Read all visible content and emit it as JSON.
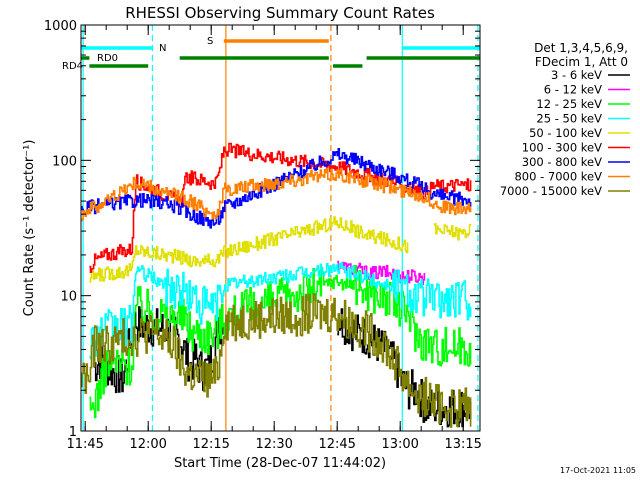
{
  "chart_data": {
    "type": "line",
    "title": "RHESSI Observing Summary Count Rates",
    "xlabel": "Start Time (28-Dec-07 11:44:02)",
    "ylabel": "Count Rate (s⁻¹ detector⁻¹)",
    "yscale": "log",
    "xlim_minutes": [
      0,
      95
    ],
    "ylim": [
      1,
      1000
    ],
    "x_ticks": [
      {
        "label": "11:45",
        "min": 1
      },
      {
        "label": "12:00",
        "min": 16
      },
      {
        "label": "12:15",
        "min": 31
      },
      {
        "label": "12:30",
        "min": 46
      },
      {
        "label": "12:45",
        "min": 61
      },
      {
        "label": "13:00",
        "min": 76
      },
      {
        "label": "13:15",
        "min": 91
      }
    ],
    "y_ticks": [
      {
        "label": "1",
        "value": 1
      },
      {
        "label": "10",
        "value": 10
      },
      {
        "label": "100",
        "value": 100
      },
      {
        "label": "1000",
        "value": 1000
      }
    ],
    "legend": {
      "header": [
        "Det 1,3,4,5,6,9,",
        "FDecim 1, Att 0"
      ],
      "position": "right"
    },
    "series": [
      {
        "name": "3 - 6 keV",
        "color": "#000000",
        "t": [
          0,
          2,
          3,
          5,
          6,
          10,
          12,
          13,
          14,
          18,
          22,
          24,
          26,
          27,
          28,
          29,
          30,
          31,
          32,
          33,
          34,
          60,
          61,
          62,
          65,
          68,
          72,
          75,
          76,
          78,
          80,
          82,
          85,
          90,
          93
        ],
        "v": [
          null,
          null,
          3,
          3.4,
          3,
          2.4,
          5.5,
          6.5,
          6,
          5.8,
          5.5,
          4.5,
          3,
          3.5,
          3,
          2.8,
          3,
          3.5,
          4.8,
          6,
          6.2,
          null,
          7,
          6.5,
          5.4,
          5,
          4,
          3,
          2.4,
          2,
          2,
          1.5,
          1.5,
          1.5,
          1.5
        ]
      },
      {
        "name": "6 - 12 keV",
        "color": "#ff00ff",
        "t": [
          60,
          61,
          63,
          66,
          69,
          72,
          74,
          76,
          78,
          80,
          82,
          84,
          86,
          88,
          90,
          92,
          94
        ],
        "v": [
          null,
          17,
          16,
          15.5,
          14.5,
          15,
          14.5,
          14,
          14,
          13.8,
          13.5,
          null,
          null,
          null,
          null,
          null,
          null
        ]
      },
      {
        "name": "12 - 25 keV",
        "color": "#00ff00",
        "t": [
          0,
          2,
          3,
          5,
          6,
          8,
          10,
          12,
          13,
          14,
          16,
          18,
          20,
          22,
          24,
          25,
          26,
          28,
          30,
          32,
          33,
          34,
          61,
          62,
          65,
          68,
          71,
          74,
          76,
          78,
          80,
          82,
          84,
          86,
          88,
          90,
          92,
          93
        ],
        "v": [
          null,
          1.3,
          1.6,
          2.4,
          3.2,
          3.2,
          3.1,
          3,
          8.5,
          8.4,
          8,
          7.6,
          7.3,
          7.1,
          7,
          6.5,
          5.5,
          5.3,
          5.2,
          5.4,
          6,
          7,
          13,
          12.5,
          12,
          11,
          10,
          9,
          8,
          7.5,
          5,
          4.6,
          4.3,
          4.2,
          4.3,
          4.2,
          4.3,
          4.2
        ]
      },
      {
        "name": "25 - 50 keV",
        "color": "#00ffff",
        "t": [
          0,
          2,
          3,
          5,
          6,
          8,
          10,
          12,
          13,
          14,
          16,
          18,
          20,
          22,
          24,
          26,
          28,
          30,
          32,
          33,
          34,
          61,
          62,
          65,
          68,
          71,
          74,
          76,
          78,
          80,
          82,
          84,
          86,
          88,
          90,
          92,
          93
        ],
        "v": [
          null,
          4.5,
          5,
          5.4,
          5.5,
          5.7,
          5.9,
          6,
          16,
          15,
          14,
          13,
          12,
          11.5,
          11,
          10,
          8.8,
          8.2,
          8.5,
          9.5,
          12,
          16,
          15.5,
          14.5,
          13.5,
          12.5,
          12,
          11.5,
          11,
          10,
          9.5,
          9.4,
          9.3,
          9.4,
          9.5,
          9.4,
          9.4
        ]
      },
      {
        "name": "50 - 100 keV",
        "color": "#e0e000",
        "t": [
          0,
          2,
          3,
          6,
          9,
          12,
          13,
          14,
          16,
          18,
          20,
          22,
          24,
          25,
          26,
          28,
          30,
          32,
          33,
          34,
          61,
          62,
          64,
          66,
          68,
          70,
          72,
          74,
          76,
          78,
          80,
          82,
          84,
          86,
          88,
          90,
          92,
          93
        ],
        "v": [
          null,
          13,
          14,
          14.5,
          15,
          15.5,
          22,
          21.5,
          21,
          20.5,
          20,
          19.5,
          19,
          19,
          18,
          18,
          18,
          18.5,
          19,
          21,
          35,
          34,
          32,
          30,
          28,
          27,
          26,
          25,
          24,
          23,
          null,
          null,
          31,
          30,
          30,
          29,
          30,
          31
        ]
      },
      {
        "name": "100 - 300 keV",
        "color": "#ff0000",
        "t": [
          0,
          2,
          3,
          6,
          9,
          12,
          13,
          14,
          16,
          18,
          20,
          22,
          24,
          25,
          26,
          28,
          30,
          32,
          33,
          34,
          61,
          62,
          64,
          66,
          68,
          70,
          72,
          74,
          76,
          78,
          80,
          82,
          84,
          86,
          88,
          90,
          92,
          93
        ],
        "v": [
          null,
          16,
          18,
          20,
          21,
          22,
          70,
          68,
          63,
          60,
          55,
          52,
          50,
          75,
          74,
          72,
          70,
          66,
          85,
          120,
          90,
          88,
          85,
          82,
          78,
          74,
          72,
          70,
          66,
          62,
          60,
          57,
          65,
          64,
          65,
          66,
          65,
          66
        ]
      },
      {
        "name": "300 - 800 keV",
        "color": "#0000ff",
        "t": [
          0,
          1,
          2,
          4,
          6,
          8,
          10,
          12,
          14,
          16,
          18,
          20,
          22,
          24,
          26,
          28,
          30,
          32,
          33,
          34,
          61,
          62,
          64,
          66,
          68,
          70,
          72,
          74,
          76,
          78,
          80,
          82,
          84,
          86,
          88,
          90,
          92,
          93
        ],
        "v": [
          42,
          44,
          45,
          46,
          47,
          48,
          49,
          50,
          51,
          50,
          49,
          48,
          46,
          43,
          40,
          38,
          36,
          35,
          38,
          45,
          110,
          108,
          104,
          98,
          94,
          88,
          84,
          80,
          75,
          70,
          66,
          62,
          56,
          54,
          53,
          52,
          51,
          51
        ]
      },
      {
        "name": "800 - 7000 keV",
        "color": "#ff8000",
        "t": [
          0,
          1,
          2,
          4,
          6,
          8,
          10,
          12,
          14,
          16,
          18,
          20,
          22,
          24,
          26,
          28,
          30,
          32,
          33,
          34,
          61,
          62,
          64,
          66,
          68,
          70,
          72,
          74,
          76,
          78,
          80,
          82,
          84,
          86,
          88,
          90,
          92,
          93
        ],
        "v": [
          40,
          42,
          44,
          46,
          50,
          55,
          60,
          66,
          68,
          64,
          60,
          56,
          55,
          54,
          50,
          46,
          42,
          40,
          45,
          60,
          80,
          79,
          75,
          72,
          70,
          68,
          65,
          63,
          60,
          58,
          56,
          54,
          48,
          46,
          44,
          44,
          43,
          43
        ]
      },
      {
        "name": "7000 - 15000 keV",
        "color": "#808000",
        "t": [
          0,
          2,
          3,
          5,
          6,
          8,
          10,
          12,
          13,
          14,
          16,
          18,
          20,
          22,
          24,
          26,
          28,
          30,
          32,
          33,
          34,
          61,
          62,
          64,
          66,
          68,
          70,
          72,
          74,
          76,
          78,
          80,
          82,
          84,
          86,
          88,
          90,
          92,
          93
        ],
        "v": [
          2.5,
          2.5,
          4.2,
          4.5,
          4.3,
          4.5,
          4.8,
          5,
          5,
          5.2,
          5.3,
          5.2,
          4.8,
          4.3,
          3,
          2.6,
          2.5,
          2.4,
          2.5,
          3.5,
          6.5,
          7.5,
          7,
          6.5,
          6,
          5.5,
          5,
          4.5,
          3.5,
          2.8,
          2.2,
          1.8,
          1.8,
          1.6,
          1.6,
          1.5,
          1.5,
          1.5,
          1.5
        ]
      }
    ],
    "annotations": {
      "bar_labels": {
        "rd0": "RD0",
        "rd4": "RD4",
        "night": "N",
        "saa": "S"
      },
      "bars": [
        {
          "label": "N",
          "color": "#00ffff",
          "segments": [
            [
              0,
              17
            ],
            [
              76.5,
              95
            ]
          ],
          "row": "N"
        },
        {
          "label": "S",
          "color": "#ff8000",
          "segments": [
            [
              34,
              59
            ]
          ],
          "row": "S"
        },
        {
          "label": "RD0",
          "color": "#008000",
          "segments": [
            [
              0,
              2
            ],
            [
              23.5,
              59
            ],
            [
              68,
              95
            ]
          ],
          "row": "RD0"
        },
        {
          "label": "RD4",
          "color": "#008000",
          "segments": [
            [
              2,
              16
            ],
            [
              60,
              67
            ]
          ],
          "row": "RD4"
        }
      ],
      "vlines": [
        {
          "min": 0.5,
          "color": "#00ffff",
          "dash": false
        },
        {
          "min": 17,
          "color": "#00ffff",
          "dash": true
        },
        {
          "min": 34.5,
          "color": "#ff8000",
          "dash": false
        },
        {
          "min": 59.5,
          "color": "#ff8000",
          "dash": true
        },
        {
          "min": 76.5,
          "color": "#00ffff",
          "dash": false
        },
        {
          "min": 94.5,
          "color": "#00ffff",
          "dash": true
        }
      ]
    },
    "footer_date": "17-Oct-2021 11:05"
  }
}
